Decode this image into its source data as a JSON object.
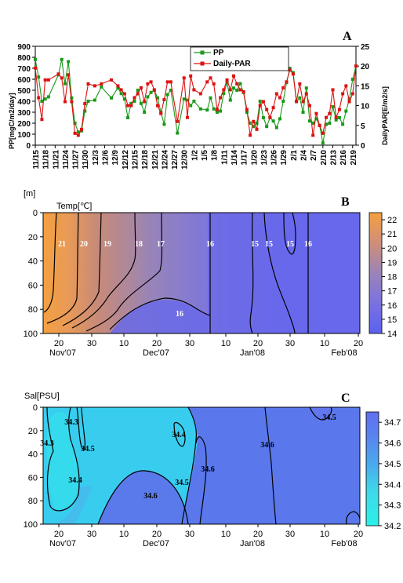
{
  "chart_data": [
    {
      "panel": "A",
      "type": "line",
      "ylabel": "PP[mgC/m2/day]",
      "y2label": "DailyPAR[E/m2/s]",
      "ylim": [
        0,
        900
      ],
      "y2lim": [
        0,
        25
      ],
      "yticks": [
        0,
        100,
        200,
        300,
        400,
        500,
        600,
        700,
        800,
        900
      ],
      "y2ticks": [
        0,
        5,
        10,
        15,
        20,
        25
      ],
      "x_tick_labels": [
        "11/15",
        "11/18",
        "11/21",
        "11/24",
        "11/27",
        "11/30",
        "12/3",
        "12/6",
        "12/9",
        "12/12",
        "12/15",
        "12/18",
        "12/21",
        "12/24",
        "12/27",
        "12/30",
        "1/2",
        "1/5",
        "1/8",
        "1/11",
        "1/14",
        "1/17",
        "1/20",
        "1/23",
        "1/26",
        "1/29",
        "2/1",
        "2/4",
        "2/7",
        "2/10",
        "2/13",
        "2/16",
        "2/19"
      ],
      "series": [
        {
          "name": "PP",
          "color": "#1a9a1a",
          "axis": "left",
          "x": [
            0,
            1,
            2,
            3,
            4,
            7,
            8,
            9,
            10,
            11,
            12,
            13,
            14,
            15,
            16,
            18,
            20,
            23,
            25,
            26,
            27,
            28,
            29,
            30,
            31,
            32,
            33,
            34,
            35,
            36,
            37,
            38,
            39,
            40,
            41,
            43,
            45,
            46,
            47,
            48,
            50,
            52,
            53,
            54,
            55,
            56,
            57,
            58,
            59,
            60,
            61,
            62,
            63,
            64,
            65,
            66,
            67,
            68,
            69,
            70,
            71,
            72,
            73,
            74,
            75,
            76,
            77,
            78,
            79,
            80,
            81,
            82,
            83,
            84,
            85,
            86,
            87,
            88,
            89,
            90,
            91,
            92,
            93,
            94,
            95,
            96,
            97
          ],
          "y": [
            780,
            620,
            400,
            420,
            440,
            640,
            780,
            560,
            760,
            430,
            200,
            120,
            130,
            310,
            400,
            410,
            530,
            430,
            520,
            470,
            420,
            250,
            380,
            400,
            500,
            380,
            300,
            440,
            480,
            500,
            430,
            300,
            190,
            460,
            500,
            110,
            420,
            410,
            360,
            400,
            330,
            320,
            430,
            330,
            300,
            310,
            470,
            570,
            410,
            520,
            500,
            560,
            480,
            300,
            200,
            170,
            200,
            400,
            250,
            170,
            250,
            220,
            160,
            240,
            400,
            570,
            700,
            660,
            400,
            430,
            300,
            520,
            220,
            200,
            240,
            180,
            20,
            190,
            200,
            350,
            230,
            250,
            190,
            310,
            420,
            600,
            720
          ]
        },
        {
          "name": "Daily-PAR",
          "color": "#dd1111",
          "axis": "right",
          "x": [
            0,
            1,
            2,
            3,
            4,
            7,
            8,
            9,
            10,
            11,
            12,
            13,
            14,
            15,
            16,
            18,
            20,
            23,
            25,
            26,
            27,
            28,
            29,
            30,
            31,
            32,
            33,
            34,
            35,
            36,
            37,
            38,
            39,
            40,
            41,
            43,
            45,
            46,
            47,
            48,
            50,
            52,
            53,
            54,
            55,
            56,
            57,
            58,
            59,
            60,
            61,
            62,
            63,
            64,
            65,
            66,
            67,
            68,
            69,
            70,
            71,
            72,
            73,
            74,
            75,
            76,
            77,
            78,
            79,
            80,
            81,
            82,
            83,
            84,
            85,
            86,
            87,
            88,
            89,
            90,
            91,
            92,
            93,
            94,
            95,
            96,
            97
          ],
          "y": [
            19.5,
            12,
            6.5,
            16.5,
            16.5,
            18,
            17,
            11,
            17.8,
            11,
            3,
            2.5,
            4,
            10.5,
            15.5,
            15,
            15.5,
            16.5,
            15,
            14,
            13,
            10,
            10,
            12,
            13,
            14.5,
            11,
            15.5,
            16,
            14,
            10,
            8,
            11.5,
            16,
            16,
            6,
            17,
            7,
            17.5,
            14,
            13,
            16,
            17,
            15.5,
            9,
            12,
            14,
            16.5,
            14,
            17.5,
            15.5,
            14,
            13.5,
            9,
            2.5,
            6,
            4,
            10,
            11,
            9,
            7,
            9.5,
            13,
            12,
            14.5,
            16,
            19,
            18,
            11,
            15.5,
            11,
            13,
            10,
            2.5,
            8,
            5,
            3,
            7,
            8,
            14,
            7,
            9,
            13,
            15,
            11,
            13,
            20
          ]
        }
      ],
      "legend": [
        "PP",
        "Daily-PAR"
      ],
      "legend_position": "top-center"
    },
    {
      "panel": "B",
      "type": "heatmap",
      "variable_label": "Temp[℃]",
      "y_unit_label": "[m]",
      "yticks": [
        0,
        20,
        40,
        60,
        80,
        100
      ],
      "x_tick_labels": [
        "20",
        "30",
        "10",
        "20",
        "30",
        "10",
        "20",
        "30",
        "10",
        "20"
      ],
      "month_labels": [
        "Nov'07",
        "Dec'07",
        "Jan'08",
        "Feb'08"
      ],
      "colorbar_ticks": [
        14,
        15,
        16,
        17,
        18,
        19,
        20,
        21,
        22
      ],
      "colorbar_range": [
        14,
        22.5
      ],
      "contour_labels": [
        "21",
        "20",
        "19",
        "18",
        "17",
        "16",
        "15",
        "15",
        "16",
        "15",
        "16"
      ]
    },
    {
      "panel": "C",
      "type": "heatmap",
      "variable_label": "Sal[PSU]",
      "yticks": [
        0,
        20,
        40,
        60,
        80,
        100
      ],
      "x_tick_labels": [
        "20",
        "30",
        "10",
        "20",
        "30",
        "10",
        "20",
        "30",
        "10",
        "20"
      ],
      "month_labels": [
        "Nov'07",
        "Dec'07",
        "Jan'08",
        "Feb'08"
      ],
      "colorbar_ticks": [
        34.2,
        34.3,
        34.4,
        34.5,
        34.6,
        34.7
      ],
      "colorbar_range": [
        34.2,
        34.75
      ],
      "contour_labels": [
        "34.3",
        "34.3",
        "34.5",
        "34.4",
        "34.4",
        "34.5",
        "34.6",
        "34.6",
        "34.6",
        "34.5"
      ]
    }
  ],
  "panel_labels": [
    "A",
    "B",
    "C"
  ]
}
